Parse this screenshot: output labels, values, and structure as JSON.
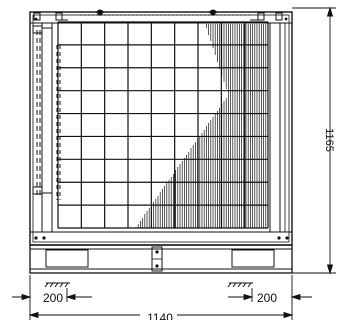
{
  "drawing": {
    "view": "front elevation",
    "dimensions": {
      "overall_width": "1140",
      "overall_height": "1165",
      "left_support_offset": "200",
      "right_support_offset": "200"
    },
    "colors": {
      "line": "#111111",
      "background": "#ffffff"
    },
    "icons": [
      "ground-symbol",
      "bolt-symbol",
      "dimension-arrow"
    ]
  }
}
